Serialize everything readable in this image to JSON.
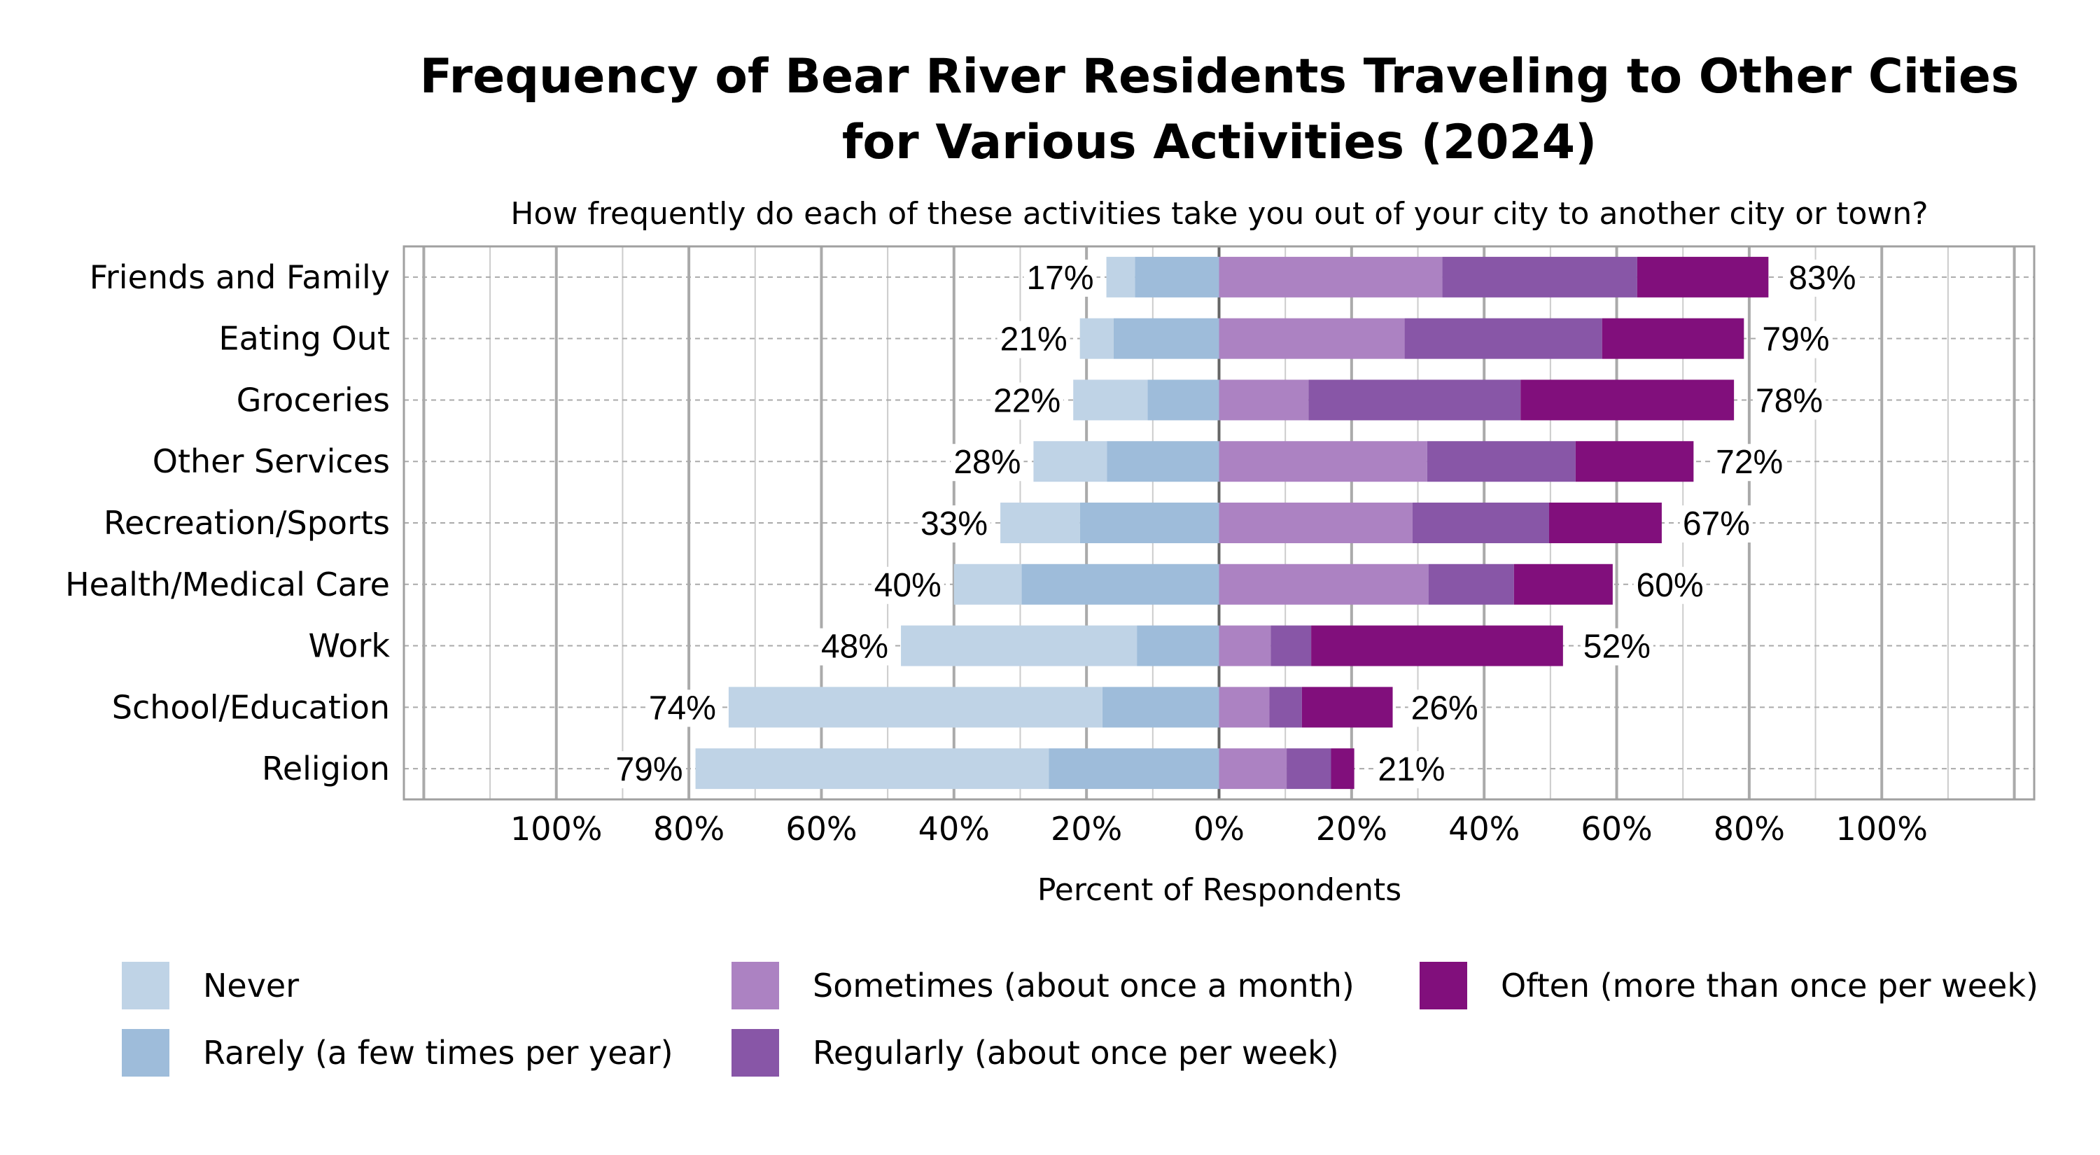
{
  "chart_data": {
    "type": "bar",
    "orientation": "horizontal-diverging-stacked",
    "title": "Frequency of Bear River Residents Traveling to Other Cities for Various Activities (2024)",
    "title_lines": [
      "Frequency of Bear River Residents Traveling to Other Cities",
      "for Various Activities (2024)"
    ],
    "subtitle": "How frequently do each of these activities take you out of your city to another city or town?",
    "xlabel": "Percent of Respondents",
    "ylabel": "",
    "xlim": [
      -123,
      123
    ],
    "x_ticks": [
      -100,
      -80,
      -60,
      -40,
      -20,
      0,
      20,
      40,
      60,
      80,
      100
    ],
    "x_tick_labels": [
      "100%",
      "80%",
      "60%",
      "40%",
      "20%",
      "0%",
      "20%",
      "40%",
      "60%",
      "80%",
      "100%"
    ],
    "grid": true,
    "legend_position": "bottom",
    "categories": [
      "Friends and Family",
      "Eating Out",
      "Groceries",
      "Other Services",
      "Recreation/Sports",
      "Health/Medical Care",
      "Work",
      "School/Education",
      "Religion"
    ],
    "series": [
      {
        "name": "Never",
        "side": "left",
        "color": "#bfd3e6",
        "values": [
          4.3,
          5.1,
          11.2,
          11.1,
          12.0,
          10.2,
          35.6,
          56.4,
          53.3
        ]
      },
      {
        "name": "Rarely (a few times per year)",
        "side": "left",
        "color": "#9ebcda",
        "values": [
          12.7,
          15.9,
          10.8,
          16.9,
          21.0,
          29.8,
          12.4,
          17.6,
          25.7
        ]
      },
      {
        "name": "Sometimes (about once a month)",
        "side": "right",
        "color": "#ac82c2",
        "values": [
          33.7,
          28.0,
          13.5,
          31.4,
          29.2,
          31.6,
          7.8,
          7.6,
          10.2
        ]
      },
      {
        "name": "Regularly (about once per week)",
        "side": "right",
        "color": "#8856a7",
        "values": [
          29.4,
          29.8,
          32.0,
          22.4,
          20.6,
          12.9,
          6.1,
          4.9,
          6.7
        ]
      },
      {
        "name": "Often (more than once per week)",
        "side": "right",
        "color": "#810f7c",
        "values": [
          19.8,
          21.4,
          32.2,
          17.8,
          17.0,
          14.9,
          38.0,
          13.7,
          3.5
        ]
      }
    ],
    "left_totals_labels": [
      "17%",
      "21%",
      "22%",
      "28%",
      "33%",
      "40%",
      "48%",
      "74%",
      "79%"
    ],
    "left_totals": [
      17,
      21,
      22,
      28,
      33,
      40,
      48,
      74,
      79
    ],
    "right_totals_labels": [
      "83%",
      "79%",
      "78%",
      "72%",
      "67%",
      "60%",
      "52%",
      "26%",
      "21%"
    ],
    "right_totals": [
      83,
      79,
      78,
      72,
      67,
      60,
      52,
      26,
      21
    ]
  }
}
